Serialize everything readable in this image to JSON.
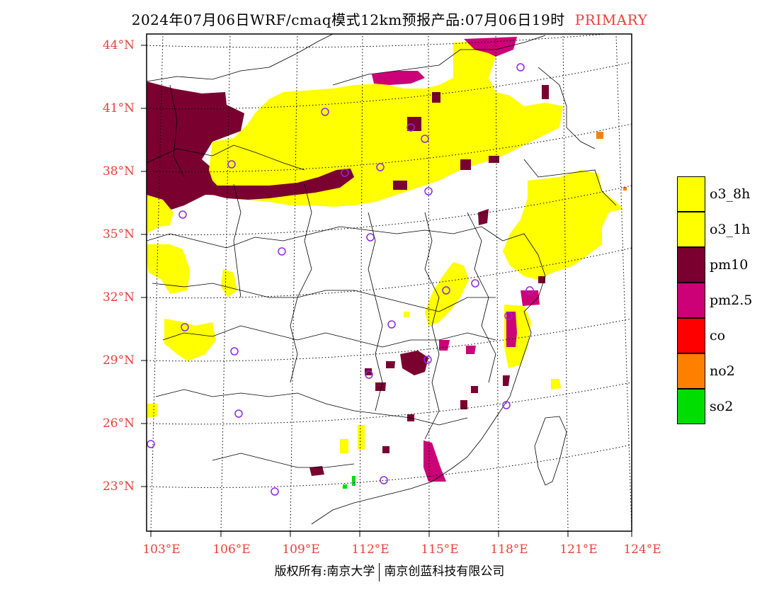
{
  "title": {
    "text": "2024年07月06日WRF/cmaq模式12km预报产品:07月06日19时",
    "tag": "PRIMARY"
  },
  "axes": {
    "latitudes": [
      "44°N",
      "41°N",
      "38°N",
      "35°N",
      "32°N",
      "29°N",
      "26°N",
      "23°N"
    ],
    "longitudes": [
      "103°E",
      "106°E",
      "109°E",
      "112°E",
      "115°E",
      "118°E",
      "121°E",
      "124°E"
    ]
  },
  "legend": [
    {
      "label": "o3_8h",
      "color": "#ffff00"
    },
    {
      "label": "o3_1h",
      "color": "#ffff00"
    },
    {
      "label": "pm10",
      "color": "#7a0030"
    },
    {
      "label": "pm2.5",
      "color": "#cc0077"
    },
    {
      "label": "co",
      "color": "#ff0000"
    },
    {
      "label": "no2",
      "color": "#ff8000"
    },
    {
      "label": "so2",
      "color": "#00dd00"
    }
  ],
  "footer": {
    "left": "版权所有:南京大学",
    "right": "南京创蓝科技有限公司"
  },
  "colors": {
    "axis_label": "#e8413a",
    "station_marker": "#8a2be2"
  }
}
